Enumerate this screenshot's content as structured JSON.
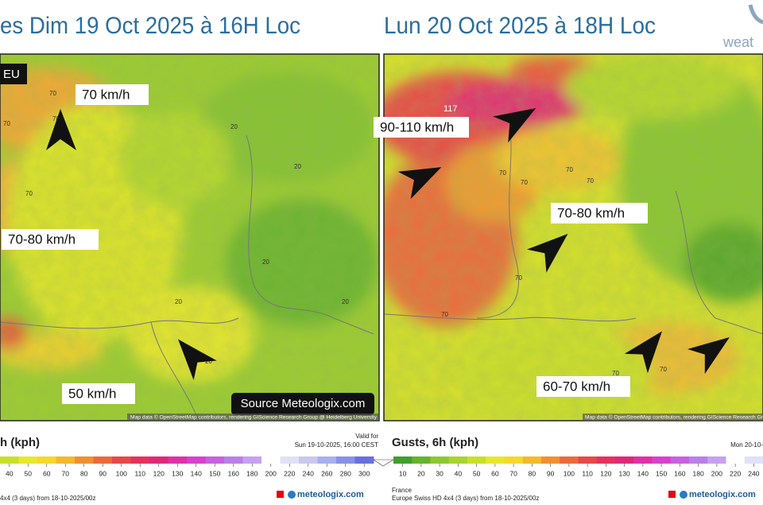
{
  "logo": "weat",
  "left_panel": {
    "title": "es  Dim 19 Oct 2025 à 16H Loc",
    "badge": "EU",
    "labels": [
      "70 km/h",
      "70-80 km/h",
      "50 km/h"
    ],
    "source": "Source Meteologix.com",
    "contours": [
      "70",
      "70",
      "70",
      "70",
      "20",
      "20",
      "20",
      "20",
      "20",
      "20"
    ],
    "attribution": "Map data © OpenStreetMap contributors, rendering GIScience Research Group @ Heidelberg University",
    "legend": {
      "title": "h (kph)",
      "valid_label": "Valid for",
      "valid_time": "Sun 19-10-2025, 16:00 CEST",
      "ticks": [
        40,
        50,
        60,
        70,
        80,
        90,
        100,
        110,
        120,
        130,
        140,
        150,
        160,
        180,
        200,
        220,
        240,
        260,
        280,
        300
      ],
      "model": "4x4 (3 days) from 18-10-2025/00z",
      "brand": "meteologix.com"
    }
  },
  "right_panel": {
    "title": "Lun 20 Oct 2025 à 18H Loc",
    "labels": [
      "90-110 km/h",
      "70-80 km/h",
      "60-70 km/h"
    ],
    "max_label": "117",
    "contours": [
      "70",
      "70",
      "70",
      "70",
      "70",
      "70",
      "70",
      "70"
    ],
    "attribution": "Map data © OpenStreetMap contributors, rendering GIScience Research Gr",
    "legend": {
      "title": "Gusts, 6h (kph)",
      "valid_time": "Mon 20-10-",
      "ticks": [
        10,
        20,
        30,
        40,
        50,
        60,
        70,
        80,
        90,
        100,
        110,
        120,
        130,
        140,
        150,
        160,
        180,
        200,
        220,
        240
      ],
      "region": "France",
      "model": "Europe Swiss HD 4x4 (3 days) from 18-10-2025/00z",
      "brand": "meteologix.com"
    }
  }
}
